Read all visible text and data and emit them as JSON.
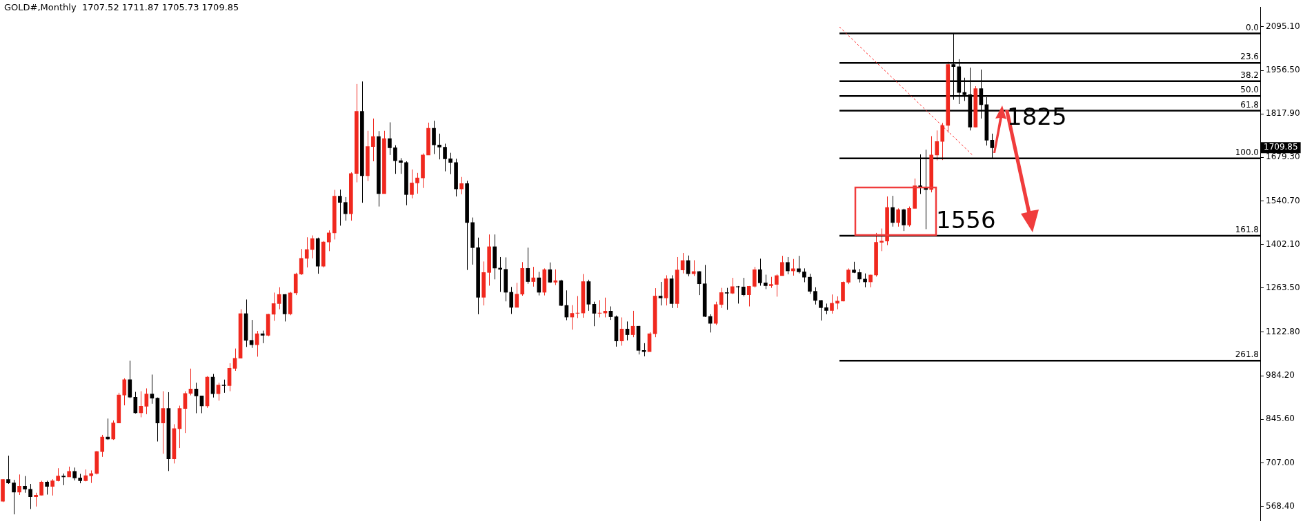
{
  "chart_data": {
    "type": "candlestick",
    "title": "GOLD#,Monthly  1707.52 1711.87 1705.73 1709.85",
    "categories": [
      null,
      null,
      null,
      null,
      null,
      null,
      null,
      null,
      null,
      null,
      null,
      null,
      null,
      null,
      null,
      null,
      null,
      null,
      null,
      null,
      null,
      null,
      null,
      null,
      null,
      null,
      null,
      null,
      null,
      null,
      null,
      null,
      null,
      null,
      null,
      null,
      null,
      null,
      null,
      null,
      null,
      null,
      null,
      null,
      null,
      null,
      null,
      null,
      null,
      null,
      null,
      null,
      null,
      null,
      null,
      null,
      null,
      null,
      null,
      null,
      null,
      null,
      null,
      null,
      null,
      null,
      null,
      null,
      null,
      null,
      null,
      null,
      null,
      null,
      null,
      null,
      null,
      null,
      null,
      null,
      null,
      null,
      null,
      null,
      null,
      null,
      null,
      null,
      null,
      null,
      null,
      null,
      null,
      null,
      null,
      null,
      null,
      null,
      null,
      null,
      null,
      null,
      null,
      null,
      null,
      null,
      null,
      null,
      null,
      null,
      null,
      null,
      null,
      null,
      null,
      null,
      null,
      null,
      null,
      null,
      null,
      null,
      null,
      null,
      null,
      null,
      null,
      null,
      null,
      null,
      null,
      null,
      null,
      null,
      null,
      null,
      null,
      null,
      null,
      null,
      null,
      null,
      null,
      null,
      null,
      null,
      null,
      null,
      null,
      null,
      null,
      null,
      null,
      null,
      null,
      null,
      null,
      null,
      null,
      null,
      null,
      null,
      null,
      null,
      null,
      null,
      null,
      null,
      null,
      null,
      null,
      null,
      null,
      null,
      null,
      null,
      null,
      null,
      null,
      null,
      null,
      null,
      null,
      null,
      null,
      null,
      null,
      null,
      null,
      null,
      null,
      null,
      null,
      null,
      null,
      null,
      null,
      null,
      null,
      null,
      null,
      null,
      null,
      null,
      null,
      null,
      null,
      null,
      null,
      null,
      null,
      null,
      null,
      null,
      null,
      null,
      null,
      null,
      null,
      null,
      null,
      null,
      null,
      null,
      null,
      null,
      null,
      null
    ],
    "ohlc": [
      [
        585,
        655,
        582,
        654
      ],
      [
        654,
        730,
        640,
        643
      ],
      [
        643,
        653,
        543,
        614
      ],
      [
        614,
        670,
        605,
        633
      ],
      [
        633,
        665,
        612,
        623
      ],
      [
        623,
        640,
        560,
        599
      ],
      [
        599,
        612,
        568,
        604
      ],
      [
        604,
        650,
        603,
        646
      ],
      [
        646,
        650,
        606,
        632
      ],
      [
        632,
        655,
        603,
        650
      ],
      [
        650,
        690,
        648,
        665
      ],
      [
        665,
        673,
        636,
        662
      ],
      [
        662,
        695,
        662,
        680
      ],
      [
        680,
        692,
        651,
        659
      ],
      [
        659,
        672,
        642,
        650
      ],
      [
        650,
        686,
        648,
        666
      ],
      [
        666,
        683,
        643,
        673
      ],
      [
        673,
        745,
        670,
        743
      ],
      [
        743,
        796,
        726,
        789
      ],
      [
        789,
        848,
        780,
        783
      ],
      [
        783,
        842,
        780,
        834
      ],
      [
        834,
        930,
        834,
        923
      ],
      [
        923,
        976,
        890,
        972
      ],
      [
        972,
        1032,
        913,
        916
      ],
      [
        916,
        933,
        864,
        866
      ],
      [
        866,
        935,
        852,
        887
      ],
      [
        887,
        944,
        862,
        926
      ],
      [
        926,
        988,
        895,
        913
      ],
      [
        913,
        915,
        775,
        834
      ],
      [
        834,
        935,
        736,
        880
      ],
      [
        880,
        932,
        681,
        720
      ],
      [
        720,
        830,
        705,
        816
      ],
      [
        816,
        889,
        754,
        880
      ],
      [
        880,
        935,
        802,
        928
      ],
      [
        928,
        1007,
        922,
        942
      ],
      [
        942,
        962,
        865,
        920
      ],
      [
        920,
        920,
        865,
        888
      ],
      [
        888,
        983,
        882,
        980
      ],
      [
        980,
        990,
        915,
        927
      ],
      [
        927,
        962,
        905,
        955
      ],
      [
        955,
        972,
        930,
        953
      ],
      [
        953,
        1024,
        935,
        1008
      ],
      [
        1008,
        1071,
        1000,
        1040
      ],
      [
        1040,
        1196,
        1040,
        1182
      ],
      [
        1182,
        1227,
        1076,
        1097
      ],
      [
        1097,
        1162,
        1073,
        1083
      ],
      [
        1083,
        1127,
        1045,
        1118
      ],
      [
        1118,
        1128,
        1088,
        1113
      ],
      [
        1113,
        1181,
        1110,
        1180
      ],
      [
        1180,
        1249,
        1159,
        1214
      ],
      [
        1214,
        1266,
        1196,
        1243
      ],
      [
        1243,
        1244,
        1157,
        1181
      ],
      [
        1181,
        1251,
        1177,
        1248
      ],
      [
        1248,
        1312,
        1241,
        1308
      ],
      [
        1308,
        1388,
        1305,
        1358
      ],
      [
        1358,
        1425,
        1329,
        1386
      ],
      [
        1386,
        1431,
        1358,
        1421
      ],
      [
        1421,
        1424,
        1309,
        1333
      ],
      [
        1333,
        1413,
        1329,
        1410
      ],
      [
        1410,
        1447,
        1381,
        1439
      ],
      [
        1439,
        1576,
        1418,
        1556
      ],
      [
        1556,
        1577,
        1462,
        1536
      ],
      [
        1536,
        1553,
        1478,
        1500
      ],
      [
        1500,
        1632,
        1478,
        1628
      ],
      [
        1628,
        1913,
        1600,
        1826
      ],
      [
        1826,
        1921,
        1535,
        1621
      ],
      [
        1621,
        1764,
        1604,
        1714
      ],
      [
        1714,
        1803,
        1667,
        1746
      ],
      [
        1746,
        1763,
        1523,
        1564
      ],
      [
        1564,
        1764,
        1564,
        1739
      ],
      [
        1739,
        1791,
        1687,
        1710
      ],
      [
        1710,
        1718,
        1627,
        1669
      ],
      [
        1669,
        1677,
        1627,
        1663
      ],
      [
        1663,
        1667,
        1527,
        1561
      ],
      [
        1561,
        1641,
        1549,
        1598
      ],
      [
        1598,
        1630,
        1564,
        1614
      ],
      [
        1614,
        1692,
        1582,
        1687
      ],
      [
        1687,
        1790,
        1687,
        1772
      ],
      [
        1772,
        1796,
        1690,
        1719
      ],
      [
        1719,
        1755,
        1673,
        1712
      ],
      [
        1712,
        1723,
        1635,
        1675
      ],
      [
        1675,
        1694,
        1626,
        1663
      ],
      [
        1663,
        1675,
        1555,
        1579
      ],
      [
        1579,
        1617,
        1562,
        1596
      ],
      [
        1596,
        1605,
        1321,
        1472
      ],
      [
        1472,
        1488,
        1338,
        1392
      ],
      [
        1392,
        1424,
        1180,
        1234
      ],
      [
        1234,
        1348,
        1208,
        1313
      ],
      [
        1313,
        1434,
        1271,
        1395
      ],
      [
        1395,
        1434,
        1291,
        1327
      ],
      [
        1327,
        1362,
        1251,
        1323
      ],
      [
        1323,
        1361,
        1221,
        1250
      ],
      [
        1250,
        1267,
        1181,
        1202
      ],
      [
        1202,
        1280,
        1202,
        1244
      ],
      [
        1244,
        1346,
        1239,
        1326
      ],
      [
        1326,
        1392,
        1277,
        1284
      ],
      [
        1284,
        1331,
        1268,
        1296
      ],
      [
        1296,
        1315,
        1240,
        1250
      ],
      [
        1250,
        1326,
        1240,
        1322
      ],
      [
        1322,
        1345,
        1280,
        1282
      ],
      [
        1282,
        1323,
        1273,
        1287
      ],
      [
        1287,
        1290,
        1206,
        1208
      ],
      [
        1208,
        1256,
        1161,
        1171
      ],
      [
        1171,
        1209,
        1131,
        1183
      ],
      [
        1183,
        1238,
        1168,
        1184
      ],
      [
        1184,
        1308,
        1169,
        1284
      ],
      [
        1284,
        1290,
        1191,
        1212
      ],
      [
        1212,
        1220,
        1142,
        1183
      ],
      [
        1183,
        1225,
        1170,
        1184
      ],
      [
        1184,
        1233,
        1170,
        1190
      ],
      [
        1190,
        1205,
        1162,
        1172
      ],
      [
        1172,
        1176,
        1077,
        1095
      ],
      [
        1095,
        1170,
        1080,
        1133
      ],
      [
        1133,
        1157,
        1097,
        1115
      ],
      [
        1115,
        1191,
        1107,
        1142
      ],
      [
        1142,
        1143,
        1052,
        1065
      ],
      [
        1065,
        1088,
        1046,
        1061
      ],
      [
        1061,
        1123,
        1061,
        1118
      ],
      [
        1118,
        1263,
        1107,
        1238
      ],
      [
        1238,
        1283,
        1208,
        1232
      ],
      [
        1232,
        1304,
        1208,
        1293
      ],
      [
        1293,
        1304,
        1200,
        1214
      ],
      [
        1214,
        1362,
        1200,
        1321
      ],
      [
        1321,
        1375,
        1310,
        1351
      ],
      [
        1351,
        1367,
        1301,
        1309
      ],
      [
        1309,
        1352,
        1302,
        1316
      ],
      [
        1316,
        1317,
        1241,
        1277
      ],
      [
        1277,
        1337,
        1171,
        1173
      ],
      [
        1173,
        1180,
        1122,
        1151
      ],
      [
        1151,
        1220,
        1146,
        1211
      ],
      [
        1211,
        1264,
        1200,
        1249
      ],
      [
        1249,
        1264,
        1194,
        1247
      ],
      [
        1247,
        1296,
        1244,
        1268
      ],
      [
        1268,
        1270,
        1214,
        1267
      ],
      [
        1267,
        1296,
        1237,
        1242
      ],
      [
        1242,
        1270,
        1205,
        1269
      ],
      [
        1269,
        1331,
        1265,
        1322
      ],
      [
        1322,
        1357,
        1271,
        1280
      ],
      [
        1280,
        1306,
        1260,
        1271
      ],
      [
        1271,
        1299,
        1264,
        1275
      ],
      [
        1275,
        1307,
        1236,
        1303
      ],
      [
        1303,
        1366,
        1303,
        1345
      ],
      [
        1345,
        1362,
        1307,
        1318
      ],
      [
        1318,
        1356,
        1303,
        1325
      ],
      [
        1325,
        1366,
        1310,
        1315
      ],
      [
        1315,
        1326,
        1282,
        1298
      ],
      [
        1298,
        1309,
        1245,
        1253
      ],
      [
        1253,
        1266,
        1211,
        1224
      ],
      [
        1224,
        1225,
        1160,
        1201
      ],
      [
        1201,
        1214,
        1180,
        1192
      ],
      [
        1192,
        1243,
        1182,
        1215
      ],
      [
        1215,
        1237,
        1196,
        1222
      ],
      [
        1222,
        1284,
        1221,
        1282
      ],
      [
        1282,
        1326,
        1276,
        1321
      ],
      [
        1321,
        1347,
        1311,
        1313
      ],
      [
        1313,
        1324,
        1281,
        1292
      ],
      [
        1292,
        1310,
        1266,
        1283
      ],
      [
        1283,
        1306,
        1266,
        1305
      ],
      [
        1305,
        1439,
        1300,
        1409
      ],
      [
        1409,
        1453,
        1381,
        1413
      ],
      [
        1413,
        1555,
        1400,
        1520
      ],
      [
        1520,
        1557,
        1459,
        1472
      ],
      [
        1472,
        1517,
        1459,
        1513
      ],
      [
        1513,
        1516,
        1445,
        1464
      ],
      [
        1464,
        1523,
        1459,
        1517
      ],
      [
        1517,
        1612,
        1517,
        1589
      ],
      [
        1589,
        1689,
        1563,
        1585
      ],
      [
        1585,
        1704,
        1451,
        1577
      ],
      [
        1577,
        1747,
        1568,
        1687
      ],
      [
        1687,
        1765,
        1670,
        1730
      ],
      [
        1730,
        1789,
        1671,
        1781
      ],
      [
        1781,
        1984,
        1758,
        1975
      ],
      [
        1975,
        2075,
        1863,
        1968
      ],
      [
        1968,
        1992,
        1849,
        1886
      ],
      [
        1886,
        1933,
        1859,
        1879
      ],
      [
        1879,
        1965,
        1765,
        1776
      ],
      [
        1776,
        1906,
        1775,
        1898
      ],
      [
        1898,
        1959,
        1803,
        1847
      ],
      [
        1847,
        1871,
        1717,
        1734
      ],
      [
        1734,
        1755,
        1676,
        1710
      ],
      null,
      null,
      null,
      null,
      null,
      null,
      null,
      null,
      null,
      null,
      null,
      null,
      null,
      null,
      null,
      null,
      null,
      null,
      null,
      null,
      null,
      null,
      null,
      null,
      null,
      null,
      null,
      null,
      null,
      null,
      null,
      null,
      null,
      null,
      null,
      null,
      null,
      null,
      null,
      null,
      null,
      null,
      null,
      null,
      null,
      null,
      null,
      null
    ],
    "colors": [
      "#f0281e",
      "#000000",
      "#000000",
      "#f0281e",
      "#000000",
      "#000000",
      "#f0281e",
      "#f0281e",
      "#000000",
      "#f0281e",
      "#f0281e",
      "#000000",
      "#f0281e",
      "#000000",
      "#000000",
      "#f0281e",
      "#f0281e",
      "#f0281e",
      "#f0281e",
      "#000000",
      "#f0281e",
      "#f0281e",
      "#f0281e",
      "#000000",
      "#000000",
      "#f0281e",
      "#f0281e",
      "#000000",
      "#000000",
      "#f0281e",
      "#000000",
      "#f0281e",
      "#f0281e",
      "#f0281e",
      "#f0281e",
      "#000000",
      "#000000",
      "#f0281e",
      "#000000",
      "#f0281e",
      "#000000",
      "#f0281e",
      "#f0281e",
      "#f0281e",
      "#000000",
      "#000000",
      "#f0281e",
      "#000000",
      "#f0281e",
      "#f0281e",
      "#f0281e",
      "#000000",
      "#f0281e",
      "#f0281e",
      "#f0281e",
      "#f0281e",
      "#f0281e",
      "#000000",
      "#f0281e",
      "#f0281e",
      "#f0281e",
      "#000000",
      "#000000",
      "#f0281e",
      "#f0281e",
      "#000000",
      "#f0281e",
      "#f0281e",
      "#000000",
      "#f0281e",
      "#000000",
      "#000000",
      "#000000",
      "#000000",
      "#f0281e",
      "#f0281e",
      "#f0281e",
      "#f0281e",
      "#000000",
      "#000000",
      "#000000",
      "#000000",
      "#000000",
      "#f0281e",
      "#000000",
      "#000000",
      "#000000",
      "#f0281e",
      "#f0281e",
      "#000000",
      "#000000",
      "#000000",
      "#000000",
      "#f0281e",
      "#f0281e",
      "#000000",
      "#f0281e",
      "#000000",
      "#f0281e",
      "#000000",
      "#f0281e",
      "#000000",
      "#000000",
      "#f0281e",
      "#f0281e",
      "#f0281e",
      "#000000",
      "#000000",
      "#f0281e",
      "#f0281e",
      "#000000",
      "#000000",
      "#f0281e",
      "#000000",
      "#f0281e",
      "#000000",
      "#000000",
      "#f0281e",
      "#f0281e",
      "#000000",
      "#f0281e",
      "#000000",
      "#f0281e",
      "#f0281e",
      "#000000",
      "#f0281e",
      "#000000",
      "#000000",
      "#000000",
      "#f0281e",
      "#f0281e",
      "#000000",
      "#f0281e",
      "#000000",
      "#000000",
      "#f0281e",
      "#f0281e",
      "#000000",
      "#000000",
      "#f0281e",
      "#f0281e",
      "#f0281e",
      "#000000",
      "#f0281e",
      "#000000",
      "#000000",
      "#000000",
      "#000000",
      "#000000",
      "#000000",
      "#f0281e",
      "#f0281e",
      "#f0281e",
      "#f0281e",
      "#000000",
      "#000000",
      "#000000",
      "#f0281e",
      "#f0281e",
      "#f0281e",
      "#f0281e",
      "#000000",
      "#f0281e",
      "#000000",
      "#f0281e",
      "#f0281e",
      "#000000",
      "#000000",
      "#f0281e",
      "#f0281e",
      "#f0281e",
      "#f0281e",
      "#000000",
      "#000000",
      "#000000",
      "#000000",
      "#f0281e",
      "#000000",
      "#000000",
      "#000000",
      null,
      null,
      null,
      null,
      null,
      null,
      null,
      null,
      null,
      null,
      null,
      null,
      null,
      null,
      null,
      null,
      null,
      null,
      null,
      null,
      null,
      null,
      null,
      null,
      null,
      null,
      null,
      null,
      null,
      null,
      null,
      null,
      null,
      null,
      null,
      null,
      null,
      null,
      null,
      null,
      null,
      null,
      null,
      null,
      null,
      null,
      null,
      null
    ],
    "ylim": [
      522,
      2158
    ],
    "yticks": [
      {
        "value": 568.4,
        "label": "568.40"
      },
      {
        "value": 707,
        "label": "707.00"
      },
      {
        "value": 845.6,
        "label": "845.60"
      },
      {
        "value": 984.2,
        "label": "984.20"
      },
      {
        "value": 1122.8,
        "label": "1122.80"
      },
      {
        "value": 1263.5,
        "label": "1263.50"
      },
      {
        "value": 1402.1,
        "label": "1402.10"
      },
      {
        "value": 1540.7,
        "label": "1540.70"
      },
      {
        "value": 1679.3,
        "label": "1679.30"
      },
      {
        "value": 1817.9,
        "label": "1817.90"
      },
      {
        "value": 1956.5,
        "label": "1956.50"
      },
      {
        "value": 2095.1,
        "label": "2095.10"
      }
    ],
    "ref_lines": [
      {
        "axis": "y",
        "value": 2074,
        "color": "#000000",
        "line_style": "solid"
      },
      {
        "axis": "y",
        "value": 1980,
        "color": "#000000",
        "line_style": "solid"
      },
      {
        "axis": "y",
        "value": 1922,
        "color": "#000000",
        "line_style": "solid"
      },
      {
        "axis": "y",
        "value": 1875,
        "color": "#000000",
        "line_style": "solid"
      },
      {
        "axis": "y",
        "value": 1828,
        "color": "#000000",
        "line_style": "solid"
      },
      {
        "axis": "y",
        "value": 1676,
        "color": "#000000",
        "line_style": "solid"
      },
      {
        "axis": "y",
        "value": 1430,
        "color": "#000000",
        "line_style": "solid"
      },
      {
        "axis": "y",
        "value": 1032,
        "color": "#000000",
        "line_style": "solid"
      }
    ],
    "annotations": [
      "1825",
      "1556",
      "1709.85",
      {
        "text": "0.0",
        "y": 2074
      },
      {
        "text": "23.6",
        "y": 1980
      },
      {
        "text": "38.2",
        "y": 1922
      },
      {
        "text": "50.0",
        "y": 1875
      },
      {
        "text": "61.8",
        "y": 1828
      },
      {
        "text": "100.0",
        "y": 1676
      },
      {
        "text": "161.8",
        "y": 1430
      },
      {
        "text": "261.8",
        "y": 1032
      }
    ],
    "legend": false,
    "grid": false,
    "tick_labels": "y"
  }
}
